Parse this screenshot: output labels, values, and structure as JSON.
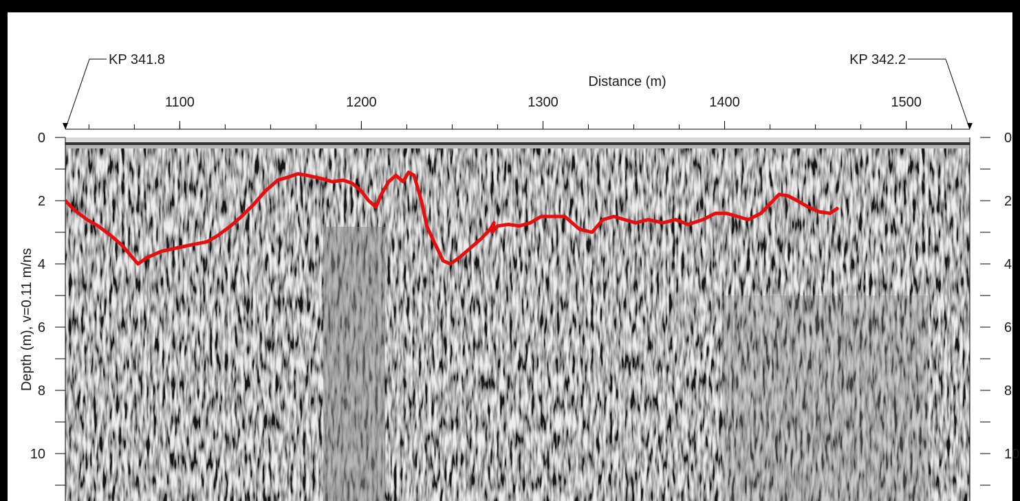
{
  "chart_data": {
    "type": "line",
    "title": "",
    "xlabel": "Distance (m)",
    "ylabel": "Depth (m), v=0.11 m/ns",
    "xlim": [
      1037,
      1535
    ],
    "ylim": [
      0,
      11.3
    ],
    "y_inverted": true,
    "grid": false,
    "legend": "none",
    "x_major_ticks": [
      1100,
      1200,
      1300,
      1400,
      1500
    ],
    "x_minor_step": 25,
    "y_major_ticks": [
      0,
      2,
      4,
      6,
      8,
      10
    ],
    "y_minor_step": 1,
    "markers": [
      {
        "label": "KP 341.8",
        "x": 1037
      },
      {
        "label": "KP 342.2",
        "x": 1535
      }
    ],
    "background": "grayscale radargram",
    "series": [
      {
        "color": "#e41010",
        "x": [
          1037,
          1042,
          1049,
          1055,
          1062,
          1068,
          1074,
          1077,
          1082,
          1090,
          1098,
          1106,
          1115,
          1121,
          1128,
          1134,
          1141,
          1147,
          1154,
          1160,
          1165,
          1170,
          1178,
          1184,
          1190,
          1195,
          1200,
          1204,
          1208,
          1211,
          1215,
          1219,
          1223,
          1226,
          1229,
          1233,
          1236,
          1240,
          1245,
          1249,
          1254,
          1260,
          1266,
          1271,
          1273,
          1272,
          1275,
          1281,
          1287,
          1293,
          1299,
          1305,
          1312,
          1320,
          1327,
          1333,
          1339,
          1345,
          1351,
          1358,
          1366,
          1373,
          1380,
          1388,
          1395,
          1401,
          1407,
          1413,
          1420,
          1425,
          1430,
          1435,
          1440,
          1446,
          1452,
          1458,
          1462
        ],
        "y": [
          2.0,
          2.3,
          2.6,
          2.8,
          3.1,
          3.4,
          3.8,
          4.0,
          3.8,
          3.6,
          3.5,
          3.4,
          3.3,
          3.1,
          2.8,
          2.5,
          2.1,
          1.7,
          1.35,
          1.25,
          1.15,
          1.2,
          1.3,
          1.4,
          1.35,
          1.45,
          1.7,
          2.0,
          2.2,
          1.8,
          1.4,
          1.2,
          1.4,
          1.1,
          1.2,
          2.0,
          2.8,
          3.3,
          3.9,
          4.0,
          3.8,
          3.5,
          3.2,
          2.9,
          2.7,
          3.0,
          2.8,
          2.75,
          2.8,
          2.7,
          2.5,
          2.5,
          2.5,
          2.9,
          3.0,
          2.6,
          2.5,
          2.6,
          2.7,
          2.6,
          2.7,
          2.6,
          2.75,
          2.6,
          2.4,
          2.4,
          2.5,
          2.6,
          2.4,
          2.1,
          1.8,
          1.85,
          2.0,
          2.2,
          2.35,
          2.4,
          2.25
        ]
      }
    ]
  }
}
